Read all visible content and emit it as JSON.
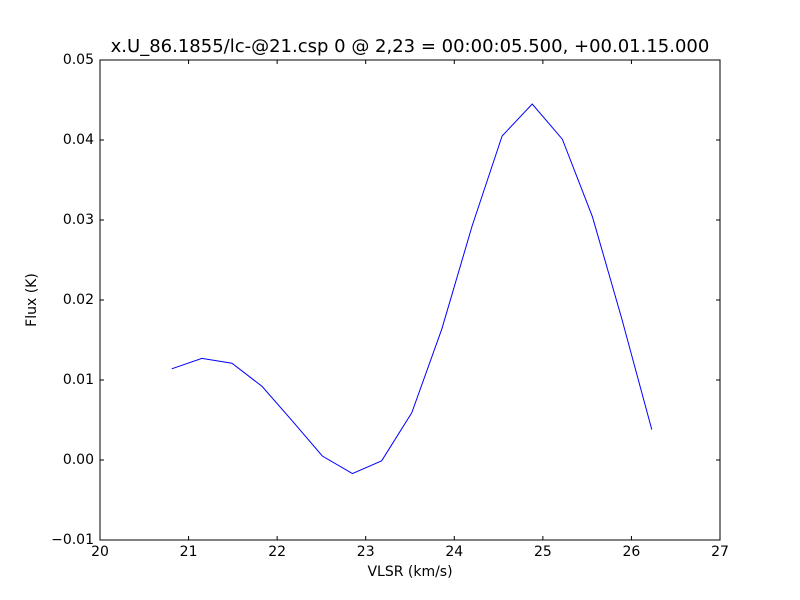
{
  "chart_data": {
    "type": "line",
    "title": "x.U_86.1855/lc-@21.csp 0 @ 2,23 = 00:00:05.500, +00.01.15.000",
    "x_label": "VLSR (km/s)",
    "y_label": "Flux (K)",
    "x": [
      20.81,
      21.15,
      21.49,
      21.83,
      22.17,
      22.51,
      22.85,
      23.18,
      23.52,
      23.86,
      24.2,
      24.54,
      24.88,
      25.22,
      25.56,
      25.89,
      26.23
    ],
    "series": [
      {
        "color": "#0000ff",
        "values": [
          0.0114,
          0.0127,
          0.0121,
          0.0092,
          0.0049,
          0.0005,
          -0.0017,
          -0.0001,
          0.0059,
          0.0164,
          0.0292,
          0.0405,
          0.0445,
          0.0401,
          0.0304,
          0.0177,
          0.0038
        ]
      }
    ],
    "xlim": [
      20,
      27
    ],
    "ylim": [
      -0.01,
      0.05
    ],
    "xticks": [
      20,
      21,
      22,
      23,
      24,
      25,
      26,
      27
    ],
    "yticks": [
      {
        "value": -0.01,
        "label": "−0.01"
      },
      {
        "value": 0,
        "label": "0.00"
      },
      0.01,
      0.02,
      0.03,
      0.04,
      0.05
    ],
    "grid": false
  }
}
